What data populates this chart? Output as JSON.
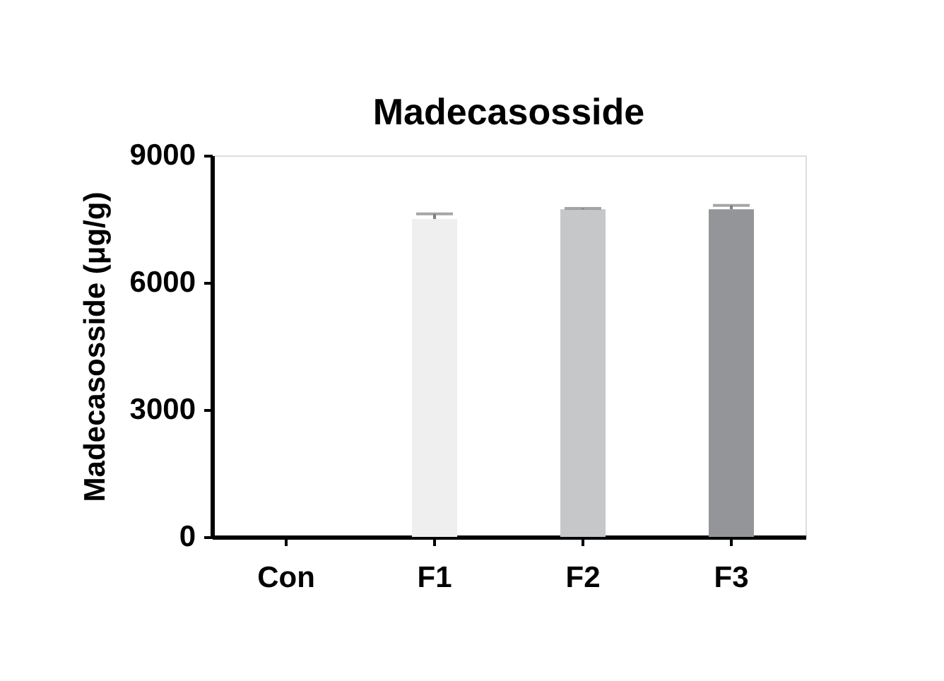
{
  "chart_data": {
    "type": "bar",
    "title": "Madecasosside",
    "ylabel": "Madecasosside (μg/g)",
    "categories": [
      "Con",
      "F1",
      "F2",
      "F3"
    ],
    "values": [
      0,
      7500,
      7730,
      7730
    ],
    "colors": [
      "#ffffff",
      "#efefef",
      "#c6c7c9",
      "#939598"
    ],
    "errors": [
      null,
      120,
      20,
      90
    ],
    "ylim": [
      0,
      9000
    ],
    "yticks": [
      0,
      3000,
      6000,
      9000
    ],
    "grid": false
  }
}
